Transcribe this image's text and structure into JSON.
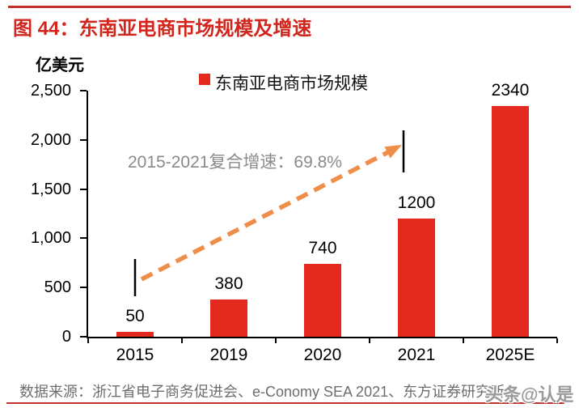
{
  "header": {
    "title": "图 44：东南亚电商市场规模及增速"
  },
  "footer": {
    "source": "数据来源：浙江省电子商务促进会、e-Conomy SEA 2021、东方证券研究所",
    "watermark": "头条@认是"
  },
  "colors": {
    "bar_red": "#E42A1E",
    "title_red": "#D2261C",
    "rule_red": "#C1302A",
    "arrow_orange": "#EE8E49",
    "annotation_gray": "#8A8A8A",
    "source_gray": "#6E6E6E",
    "watermark_gray": "#9A9A9A"
  },
  "chart_data": {
    "type": "bar",
    "title": "东南亚电商市场规模及增速",
    "unit": "亿美元",
    "series_name": "东南亚电商市场规模",
    "categories": [
      "2015",
      "2019",
      "2020",
      "2021",
      "2025E"
    ],
    "values": [
      50,
      380,
      740,
      1200,
      2340
    ],
    "ylim": [
      0,
      2500
    ],
    "yticks": [
      0,
      500,
      1000,
      1500,
      2000,
      2500
    ],
    "annotation": "2015-2021复合增速：69.8%",
    "annotation_span": [
      "2015",
      "2021"
    ],
    "legend_position": "top",
    "grid": false,
    "bar_color": "#E42A1E"
  }
}
